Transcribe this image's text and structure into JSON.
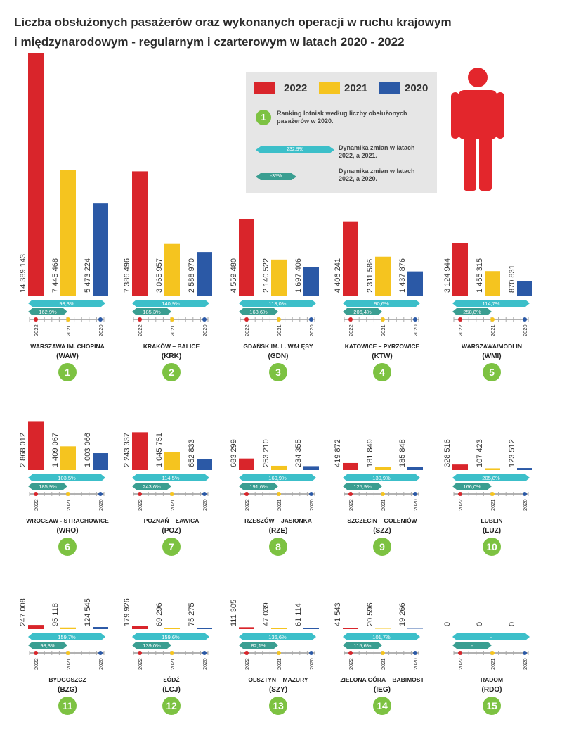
{
  "title": {
    "line1": "Liczba obsłużonych pasażerów oraz wykonanych operacji w ruchu krajowym",
    "line2": "i międzynarodowym - regularnym i czarterowym w latach 2020 - 2022"
  },
  "legend": {
    "items": [
      {
        "label": "2022",
        "color": "#d9252b"
      },
      {
        "label": "2021",
        "color": "#f5c41f"
      },
      {
        "label": "2020",
        "color": "#2b59a6"
      }
    ],
    "ranking_number": "1",
    "ranking_text_1": "Ranking lotnisk według liczby obsłużonych",
    "ranking_text_2": "pasażerów w 2020.",
    "arrow1_value": "232,9%",
    "arrow1_text_1": "Dynamika zmian w latach",
    "arrow1_text_2": "2022, a 2021.",
    "arrow2_value": "-35%",
    "arrow2_text_1": "Dynamika zmian w latach",
    "arrow2_text_2": "2022, a 2020."
  },
  "colors": {
    "y2022": "#d9252b",
    "y2021": "#f5c41f",
    "y2020": "#2b59a6",
    "dyn1": "#3cbfc9",
    "dyn2": "#3a9e91",
    "rank": "#7dc242",
    "person": "#e3262c"
  },
  "icons": {
    "person": "person-icon"
  },
  "chart_data": {
    "type": "bar",
    "years": [
      "2022",
      "2021",
      "2020"
    ],
    "airports": [
      {
        "rank": "1",
        "name": "WARSZAWA IM. CHOPINA",
        "code": "(WAW)",
        "values": [
          14389143,
          7445468,
          5473224
        ],
        "labels": [
          "14 389 143",
          "7 445 468",
          "5 473 224"
        ],
        "dyn_2122": "93,3%",
        "dyn_2220": "162,9%"
      },
      {
        "rank": "2",
        "name": "KRAKÓW – BALICE",
        "code": "(KRK)",
        "values": [
          7386496,
          3065957,
          2588970
        ],
        "labels": [
          "7 386 496",
          "3 065 957",
          "2 588 970"
        ],
        "dyn_2122": "140,9%",
        "dyn_2220": "185,3%"
      },
      {
        "rank": "3",
        "name": "GDAŃSK IM. L. WAŁĘSY",
        "code": "(GDN)",
        "values": [
          4559480,
          2140522,
          1697406
        ],
        "labels": [
          "4 559 480",
          "2 140 522",
          "1 697 406"
        ],
        "dyn_2122": "113,0%",
        "dyn_2220": "168,6%"
      },
      {
        "rank": "4",
        "name": "KATOWICE – PYRZOWICE",
        "code": "(KTW)",
        "values": [
          4406241,
          2311586,
          1437876
        ],
        "labels": [
          "4 406 241",
          "2 311 586",
          "1 437 876"
        ],
        "dyn_2122": "90,6%",
        "dyn_2220": "206,4%"
      },
      {
        "rank": "5",
        "name": "WARSZAWA/MODLIN",
        "code": "(WMI)",
        "values": [
          3124944,
          1455315,
          870831
        ],
        "labels": [
          "3 124 944",
          "1 455 315",
          "870 831"
        ],
        "dyn_2122": "114,7%",
        "dyn_2220": "258,8%"
      },
      {
        "rank": "6",
        "name": "WROCŁAW - STRACHOWICE",
        "code": "(WRO)",
        "values": [
          2868012,
          1409067,
          1003066
        ],
        "labels": [
          "2 868 012",
          "1 409 067",
          "1 003 066"
        ],
        "dyn_2122": "103,5%",
        "dyn_2220": "185,9%"
      },
      {
        "rank": "7",
        "name": "POZNAŃ – ŁAWICA",
        "code": "(POZ)",
        "values": [
          2243337,
          1045751,
          652833
        ],
        "labels": [
          "2 243 337",
          "1 045 751",
          "652 833"
        ],
        "dyn_2122": "114,5%",
        "dyn_2220": "243,6%"
      },
      {
        "rank": "8",
        "name": "RZESZÓW – JASIONKA",
        "code": "(RZE)",
        "values": [
          683299,
          253210,
          234355
        ],
        "labels": [
          "683 299",
          "253 210",
          "234 355"
        ],
        "dyn_2122": "169,9%",
        "dyn_2220": "191,6%"
      },
      {
        "rank": "9",
        "name": "SZCZECIN – GOLENIÓW",
        "code": "(SZZ)",
        "values": [
          419872,
          181849,
          185848
        ],
        "labels": [
          "419 872",
          "181 849",
          "185 848"
        ],
        "dyn_2122": "130,9%",
        "dyn_2220": "125,9%"
      },
      {
        "rank": "10",
        "name": "LUBLIN",
        "code": "(LUZ)",
        "values": [
          328516,
          107423,
          123512
        ],
        "labels": [
          "328 516",
          "107 423",
          "123 512"
        ],
        "dyn_2122": "205,8%",
        "dyn_2220": "166,0%"
      },
      {
        "rank": "11",
        "name": "BYDGOSZCZ",
        "code": "(BZG)",
        "values": [
          247008,
          95118,
          124545
        ],
        "labels": [
          "247 008",
          "95 118",
          "124 545"
        ],
        "dyn_2122": "159,7%",
        "dyn_2220": "98,3%"
      },
      {
        "rank": "12",
        "name": "ŁÓDŹ",
        "code": "(LCJ)",
        "values": [
          179926,
          69296,
          75275
        ],
        "labels": [
          "179 926",
          "69 296",
          "75 275"
        ],
        "dyn_2122": "159,6%",
        "dyn_2220": "139,0%"
      },
      {
        "rank": "13",
        "name": "OLSZTYN – MAZURY",
        "code": "(SZY)",
        "values": [
          111305,
          47039,
          61114
        ],
        "labels": [
          "111 305",
          "47 039",
          "61 114"
        ],
        "dyn_2122": "136,6%",
        "dyn_2220": "82,1%"
      },
      {
        "rank": "14",
        "name": "ZIELONA GÓRA – BABIMOST",
        "code": "(IEG)",
        "values": [
          41543,
          20596,
          19266
        ],
        "labels": [
          "41 543",
          "20 596",
          "19 266"
        ],
        "dyn_2122": "101,7%",
        "dyn_2220": "115,6%"
      },
      {
        "rank": "15",
        "name": "RADOM",
        "code": "(RDO)",
        "values": [
          0,
          0,
          0
        ],
        "labels": [
          "0",
          "0",
          "0"
        ],
        "dyn_2122": "-",
        "dyn_2220": "-"
      }
    ]
  }
}
